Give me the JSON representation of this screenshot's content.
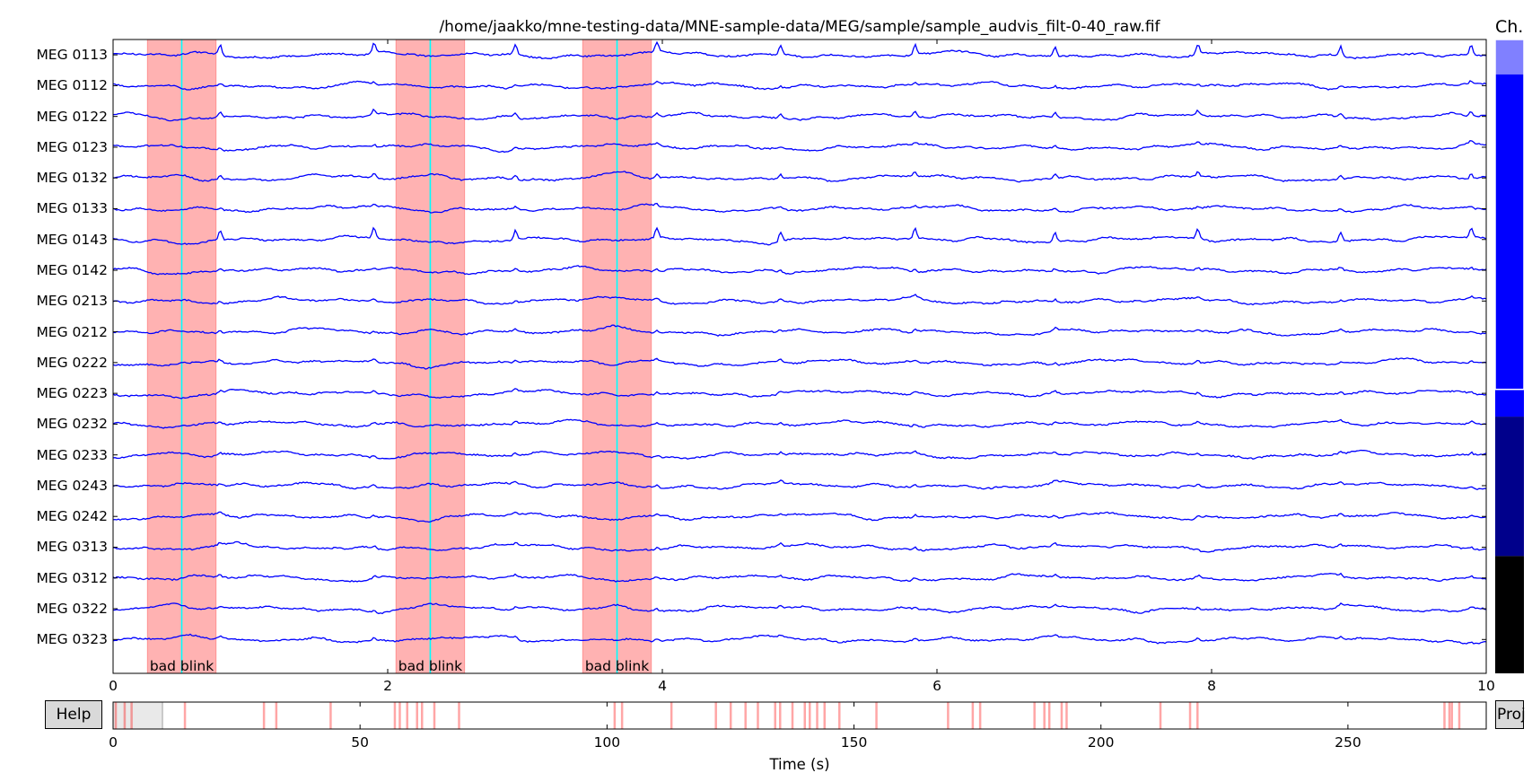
{
  "window": {
    "title": "/home/jaakko/mne-testing-data/MNE-sample-data/MEG/sample/sample_audvis_filt-0-40_raw.fif"
  },
  "scrollbar": {
    "label": "Ch.",
    "segments": [
      {
        "color": "#8080ff",
        "from": 0.0,
        "to": 0.055
      },
      {
        "color": "#0000ff",
        "from": 0.055,
        "to": 0.552
      },
      {
        "color": "#0000ff",
        "from": 0.552,
        "to": 0.595
      },
      {
        "color": "#00008b",
        "from": 0.595,
        "to": 0.815
      },
      {
        "color": "#000000",
        "from": 0.815,
        "to": 1.0
      }
    ],
    "window": {
      "from": 0.0,
      "to": 0.552
    }
  },
  "channels": [
    "MEG 0113",
    "MEG 0112",
    "MEG 0122",
    "MEG 0123",
    "MEG 0132",
    "MEG 0133",
    "MEG 0143",
    "MEG 0142",
    "MEG 0213",
    "MEG 0212",
    "MEG 0222",
    "MEG 0223",
    "MEG 0232",
    "MEG 0233",
    "MEG 0243",
    "MEG 0242",
    "MEG 0313",
    "MEG 0312",
    "MEG 0322",
    "MEG 0323"
  ],
  "annotations": [
    {
      "label": "bad blink",
      "start": 0.25,
      "end": 0.75
    },
    {
      "label": "bad blink",
      "start": 2.06,
      "end": 2.56
    },
    {
      "label": "bad blink",
      "start": 3.42,
      "end": 3.92
    }
  ],
  "events": [
    0.5,
    2.31,
    3.67
  ],
  "time_axis": {
    "min": 0,
    "max": 10,
    "ticks": [
      "0",
      "2",
      "4",
      "6",
      "8",
      "10"
    ]
  },
  "overview": {
    "min": 0,
    "max": 278,
    "ticks": [
      "0",
      "50",
      "100",
      "150",
      "200",
      "250"
    ],
    "view_window": [
      0,
      10
    ],
    "annotation_times": [
      0.5,
      2.3,
      3.7,
      14.5,
      30.5,
      33,
      44,
      57,
      58,
      59.5,
      61.5,
      62.5,
      65,
      70,
      101.5,
      103,
      113,
      122,
      125,
      128,
      130.5,
      134,
      135,
      137.5,
      140,
      141,
      142.5,
      144,
      147,
      154.5,
      169,
      174,
      175.5,
      186.5,
      188.5,
      189.5,
      192,
      193,
      212,
      218,
      219.5,
      269.5,
      270.5,
      271,
      272.5
    ]
  },
  "buttons": {
    "help": "Help",
    "proj": "Proj"
  },
  "xlabel": "Time (s)",
  "colors": {
    "trace": "#0000ff",
    "annotation": "#ff0000",
    "event_line": "#00ffff",
    "overview_window": "#d3d3d3"
  }
}
